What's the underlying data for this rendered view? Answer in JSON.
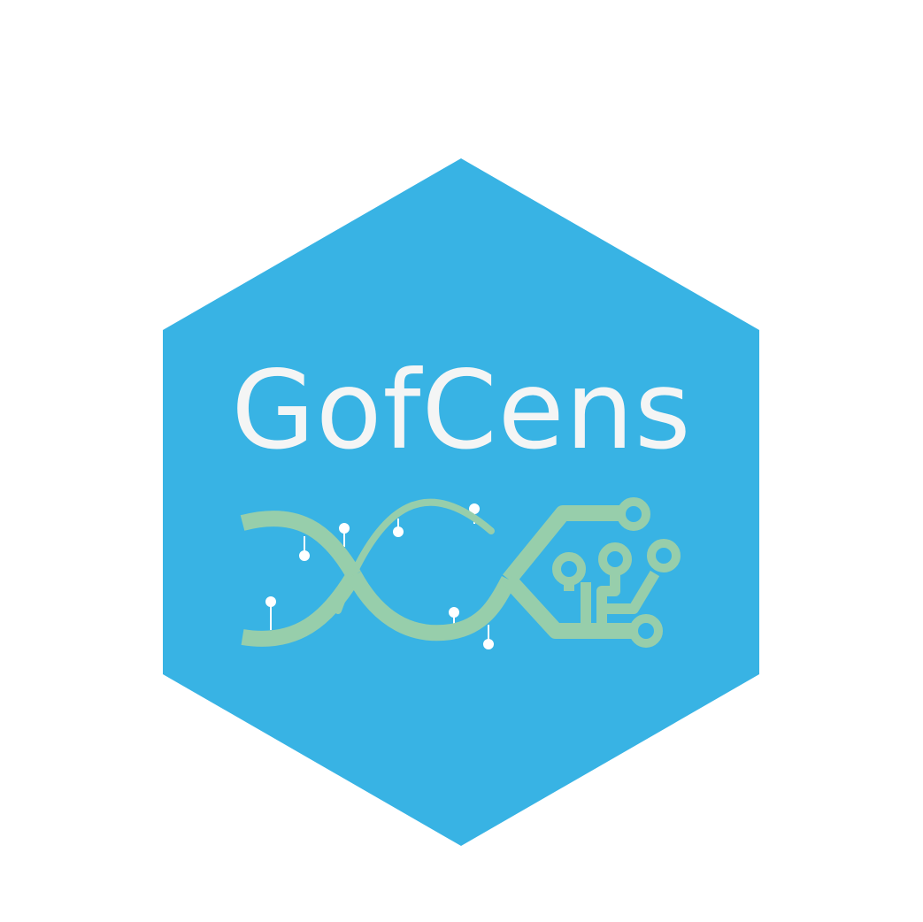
{
  "logo": {
    "title": "GofCens",
    "hexagon_color": "#38b3e4",
    "helix_color": "#97ceab",
    "node_color": "#ffffff",
    "text_color": "#f4f5f5",
    "background_color": "#ffffff",
    "emblem_icon": "dna-circuit-icon"
  }
}
